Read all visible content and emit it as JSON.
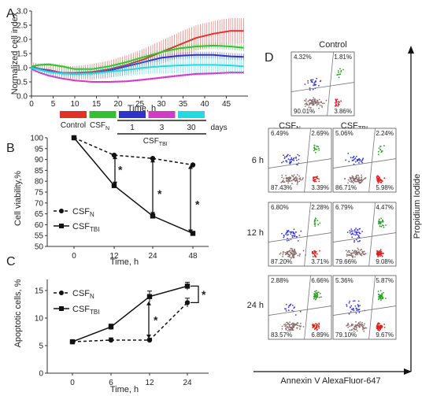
{
  "panels": {
    "a": "A",
    "b": "B",
    "c": "C",
    "d": "D"
  },
  "chart_data": [
    {
      "id": "A",
      "type": "line",
      "ylabel": "Normalized cell index",
      "xlabel": "Time, h",
      "xticks": [
        "0",
        "5",
        "10",
        "15",
        "20",
        "25",
        "30",
        "35",
        "40",
        "45"
      ],
      "yticks": [
        "0.0",
        "0.5",
        "1.0",
        "1.5",
        "2.0",
        "2.5",
        "3.0"
      ],
      "xlim": [
        0,
        50
      ],
      "ylim": [
        0,
        3
      ],
      "grid": false,
      "series": [
        {
          "color": "#e0312c",
          "points": [
            [
              0,
              1.05
            ],
            [
              2,
              0.95
            ],
            [
              4,
              0.92
            ],
            [
              7,
              0.82
            ],
            [
              10,
              0.82
            ],
            [
              14,
              0.85
            ],
            [
              18,
              0.95
            ],
            [
              22,
              1.1
            ],
            [
              26,
              1.3
            ],
            [
              30,
              1.55
            ],
            [
              34,
              1.8
            ],
            [
              38,
              2.05
            ],
            [
              42,
              2.2
            ],
            [
              46,
              2.3
            ],
            [
              49,
              2.3
            ]
          ],
          "err": 0.45
        },
        {
          "color": "#35c12e",
          "points": [
            [
              0,
              1.05
            ],
            [
              2,
              1.1
            ],
            [
              4,
              1.12
            ],
            [
              7,
              1.05
            ],
            [
              10,
              0.95
            ],
            [
              14,
              0.95
            ],
            [
              18,
              1.05
            ],
            [
              22,
              1.2
            ],
            [
              26,
              1.38
            ],
            [
              30,
              1.55
            ],
            [
              34,
              1.68
            ],
            [
              38,
              1.75
            ],
            [
              42,
              1.78
            ],
            [
              46,
              1.75
            ],
            [
              49,
              1.7
            ]
          ],
          "err": 0.12
        },
        {
          "color": "#2e34c4",
          "points": [
            [
              0,
              1.0
            ],
            [
              2,
              0.95
            ],
            [
              4,
              0.88
            ],
            [
              7,
              0.8
            ],
            [
              10,
              0.78
            ],
            [
              14,
              0.8
            ],
            [
              18,
              0.9
            ],
            [
              22,
              1.05
            ],
            [
              26,
              1.2
            ],
            [
              30,
              1.35
            ],
            [
              34,
              1.42
            ],
            [
              38,
              1.45
            ],
            [
              42,
              1.45
            ],
            [
              46,
              1.4
            ],
            [
              49,
              1.38
            ]
          ],
          "err": 0.12
        },
        {
          "color": "#d23ac8",
          "points": [
            [
              0,
              0.95
            ],
            [
              2,
              0.82
            ],
            [
              4,
              0.72
            ],
            [
              7,
              0.62
            ],
            [
              10,
              0.55
            ],
            [
              14,
              0.5
            ],
            [
              18,
              0.5
            ],
            [
              22,
              0.52
            ],
            [
              26,
              0.58
            ],
            [
              30,
              0.65
            ],
            [
              34,
              0.72
            ],
            [
              38,
              0.78
            ],
            [
              42,
              0.8
            ],
            [
              46,
              0.83
            ],
            [
              49,
              0.83
            ]
          ],
          "err": 0.05
        },
        {
          "color": "#24d9e4",
          "points": [
            [
              0,
              1.0
            ],
            [
              2,
              0.92
            ],
            [
              4,
              0.85
            ],
            [
              7,
              0.8
            ],
            [
              10,
              0.78
            ],
            [
              14,
              0.8
            ],
            [
              18,
              0.86
            ],
            [
              22,
              0.92
            ],
            [
              26,
              1.0
            ],
            [
              30,
              1.05
            ],
            [
              34,
              1.08
            ],
            [
              38,
              1.1
            ],
            [
              42,
              1.1
            ],
            [
              46,
              1.08
            ],
            [
              49,
              1.05
            ]
          ],
          "err": 0.28
        }
      ],
      "legend": {
        "items": [
          {
            "label": "Control",
            "color": "#e0312c"
          },
          {
            "label": "CSF",
            "sub": "N",
            "color": "#35c12e"
          },
          {
            "label": "1",
            "color": "#2e34c4"
          },
          {
            "label": "3",
            "color": "#d23ac8"
          },
          {
            "label": "30",
            "color": "#24d9e4"
          }
        ],
        "days": "days",
        "group": "CSF",
        "group_sub": "TBI"
      }
    },
    {
      "id": "B",
      "type": "line",
      "ylabel": "Cell viability,%",
      "xlabel": "Time, h",
      "categories": [
        "0",
        "12",
        "24",
        "48"
      ],
      "yticks": [
        "50",
        "55",
        "60",
        "65",
        "70",
        "75",
        "80",
        "85",
        "90",
        "95",
        "100"
      ],
      "ylim": [
        50,
        100
      ],
      "series": [
        {
          "name": "CSF",
          "sub": "N",
          "style": "dashed",
          "marker": "circle",
          "values": [
            100,
            92,
            90.5,
            87.5
          ]
        },
        {
          "name": "CSF",
          "sub": "TBI",
          "style": "solid",
          "marker": "square",
          "values": [
            100,
            78,
            64,
            56
          ]
        }
      ],
      "annotations": [
        "*",
        "*",
        "*"
      ]
    },
    {
      "id": "C",
      "type": "line",
      "ylabel": "Apoptotic cells, %",
      "xlabel": "Time, h",
      "categories": [
        "0",
        "6",
        "12",
        "24"
      ],
      "yticks": [
        "0",
        "5",
        "10",
        "15"
      ],
      "ylim": [
        0,
        17
      ],
      "series": [
        {
          "name": "CSF",
          "sub": "N",
          "style": "dashed",
          "marker": "circle",
          "values": [
            5.7,
            6.0,
            6.0,
            12.8
          ],
          "err": [
            0.2,
            0.4,
            0.3,
            0.8
          ]
        },
        {
          "name": "CSF",
          "sub": "TBI",
          "style": "solid",
          "marker": "square",
          "values": [
            5.7,
            8.4,
            13.9,
            15.8
          ],
          "err": [
            0.2,
            0.5,
            1.0,
            0.7
          ]
        }
      ],
      "annotations": [
        "*",
        "*"
      ]
    },
    {
      "id": "D",
      "type": "scatter",
      "title": "Control",
      "xlabel": "Annexin V AlexaFluor-647",
      "ylabel": "Propidium Iodide",
      "columns": [
        {
          "label": "CSF",
          "sub": "N"
        },
        {
          "label": "CSF",
          "sub": "TBI"
        }
      ],
      "rows": [
        "6 h",
        "12 h",
        "24 h"
      ],
      "plots": [
        {
          "key": "control",
          "q": [
            "4.32%",
            "1.81%",
            "90.01%",
            "3.86%"
          ]
        },
        {
          "key": "n6",
          "q": [
            "6.49%",
            "2.69%",
            "87.43%",
            "3.39%"
          ]
        },
        {
          "key": "t6",
          "q": [
            "5.06%",
            "2.24%",
            "86.71%",
            "5.98%"
          ]
        },
        {
          "key": "n12",
          "q": [
            "6.80%",
            "2.28%",
            "87.20%",
            "3.71%"
          ]
        },
        {
          "key": "t12",
          "q": [
            "6.79%",
            "4.47%",
            "79.66%",
            "9.08%"
          ]
        },
        {
          "key": "n24",
          "q": [
            "2.88%",
            "6.66%",
            "83.57%",
            "6.89%"
          ]
        },
        {
          "key": "t24",
          "q": [
            "5.36%",
            "5.87%",
            "79.10%",
            "9.67%"
          ]
        }
      ]
    }
  ]
}
